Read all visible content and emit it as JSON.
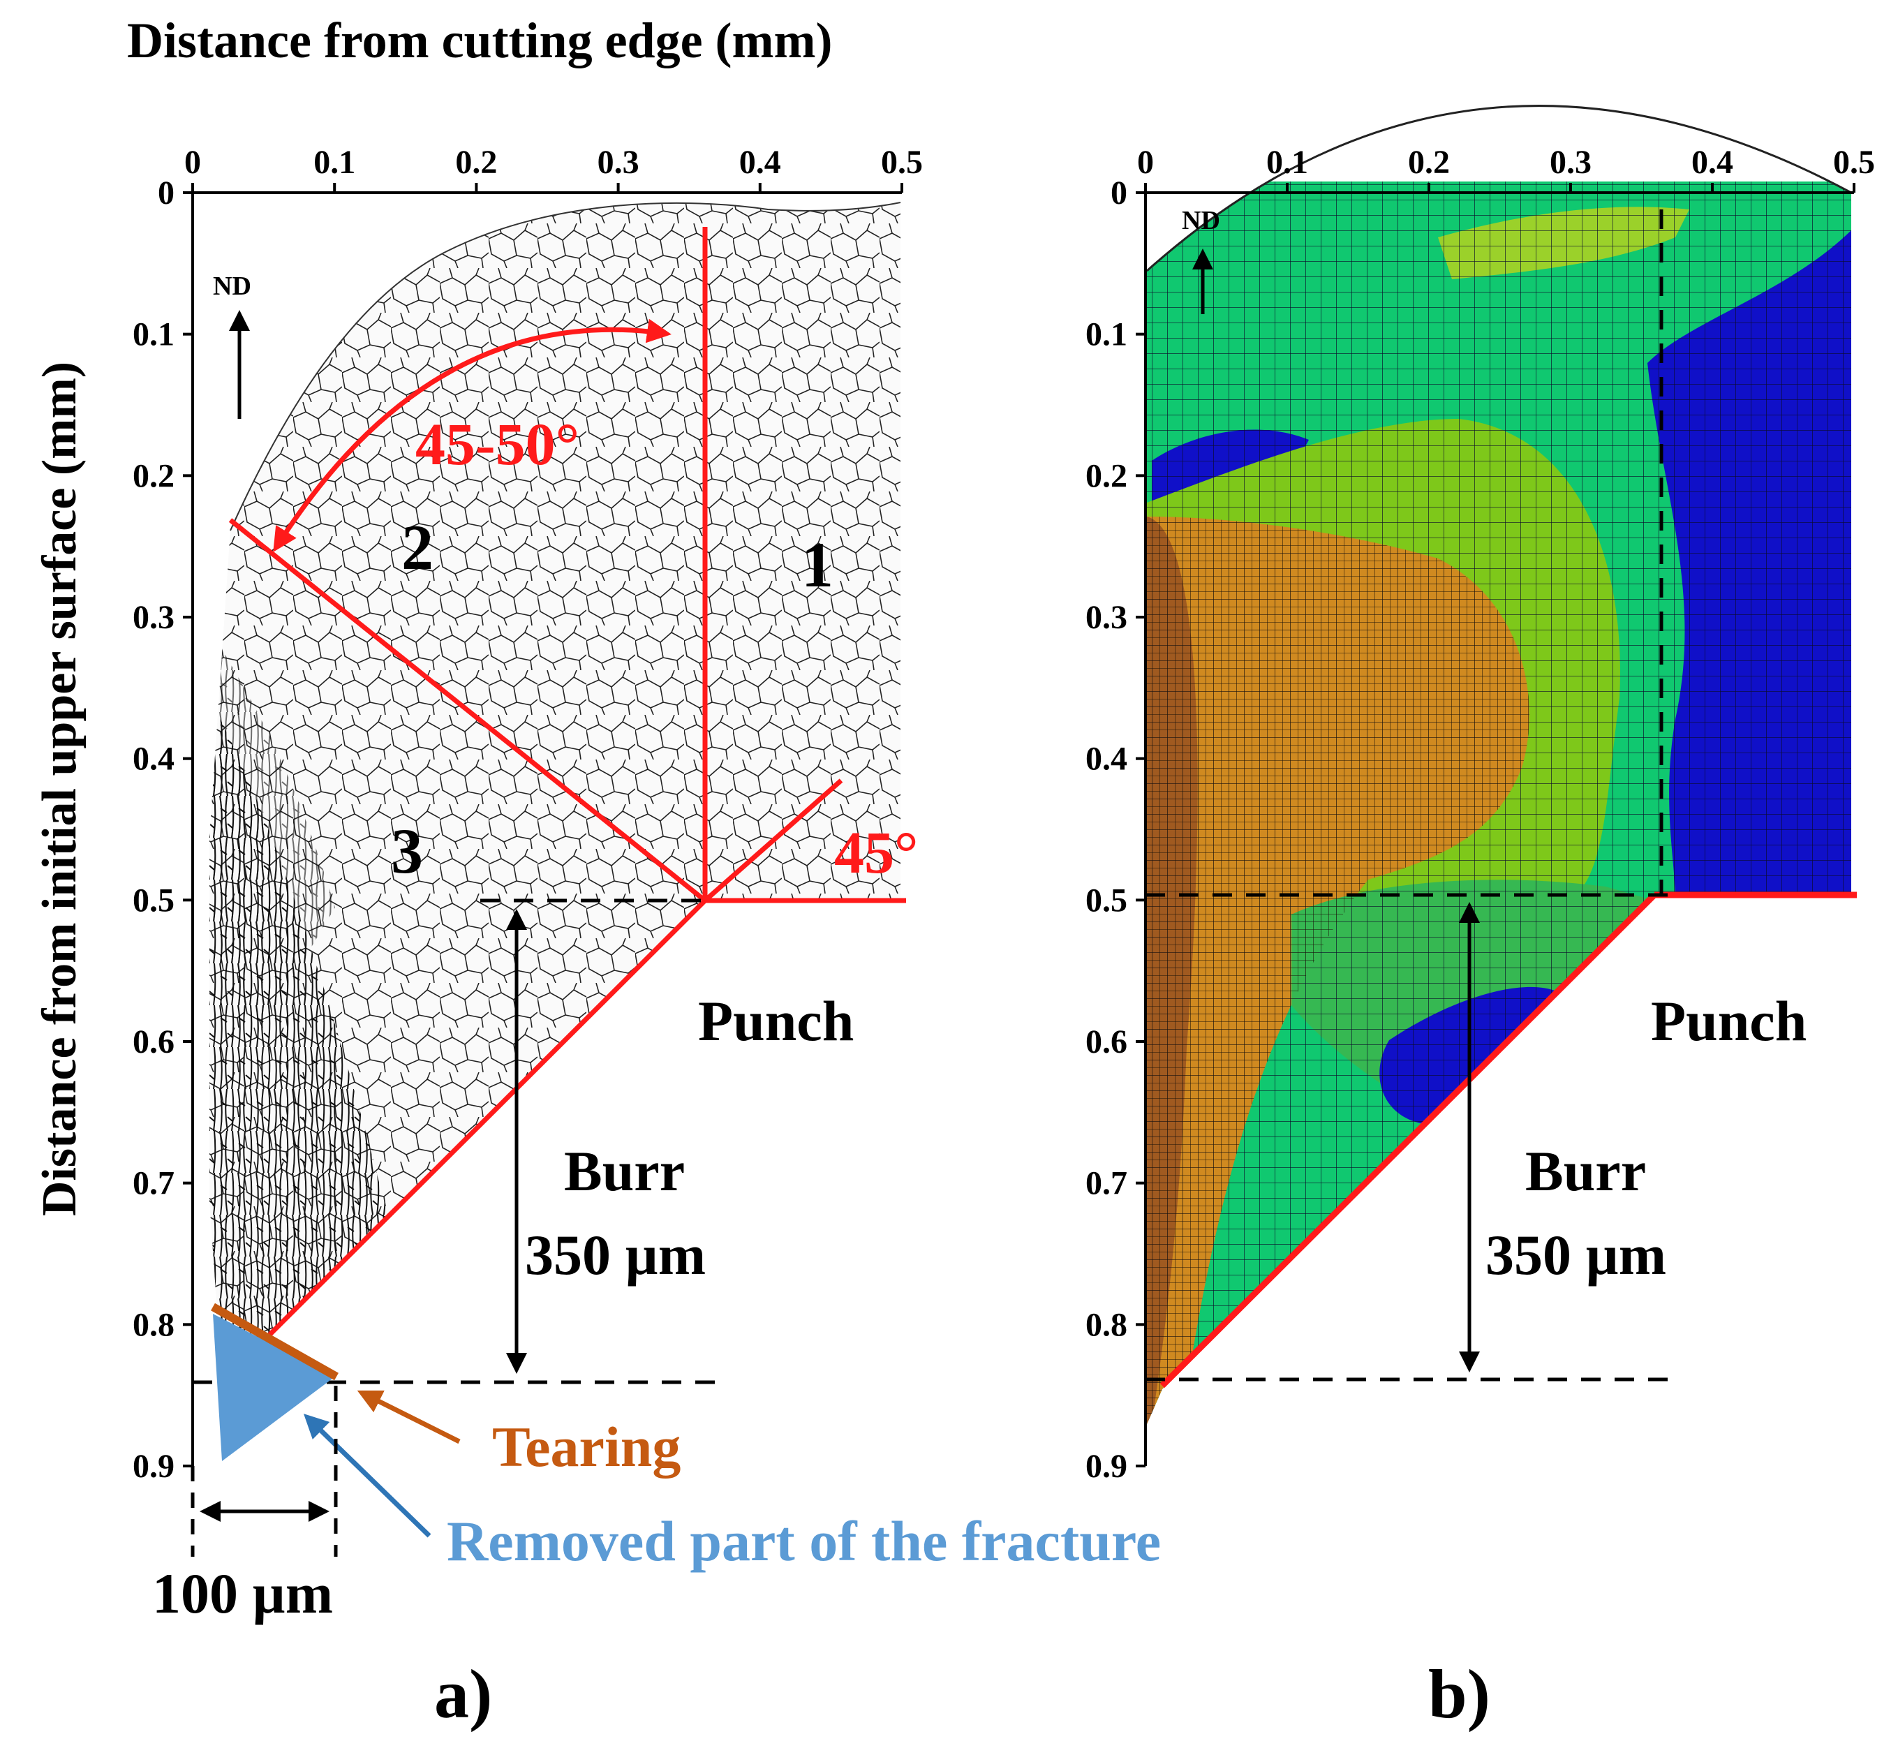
{
  "title": "Distance from cutting edge (mm)",
  "y_label": "Distance from initial upper surface (mm)",
  "colors": {
    "red": "#ff1a1a",
    "tearing": "#c55a11",
    "removed": "#5b9bd5",
    "fem_blue": "#1010c8",
    "fem_green": "#10c870",
    "fem_lime": "#7ec81a",
    "fem_orange": "#d08a20",
    "fem_brown": "#a05a20"
  },
  "panel_a": {
    "label": "a)",
    "x_ticks": [
      "0",
      "0.1",
      "0.2",
      "0.3",
      "0.4",
      "0.5"
    ],
    "y_ticks": [
      "0",
      "0.1",
      "0.2",
      "0.3",
      "0.4",
      "0.5",
      "0.6",
      "0.7",
      "0.8",
      "0.9"
    ],
    "nd_label": "ND",
    "zones": [
      "1",
      "2",
      "3"
    ],
    "angle_label": "45-50°",
    "angle2_label": "45°",
    "punch_label": "Punch",
    "burr_label": "Burr",
    "burr_size": "350 µm",
    "width_label": "100 µm",
    "tearing_label": "Tearing",
    "removed_label": "Removed part of the fracture"
  },
  "panel_b": {
    "label": "b)",
    "x_ticks": [
      "0",
      "0.1",
      "0.2",
      "0.3",
      "0.4",
      "0.5"
    ],
    "y_ticks": [
      "0",
      "0.1",
      "0.2",
      "0.3",
      "0.4",
      "0.5",
      "0.6",
      "0.7",
      "0.8",
      "0.9"
    ],
    "nd_label": "ND",
    "punch_label": "Punch",
    "burr_label": "Burr",
    "burr_size": "350 µm"
  }
}
